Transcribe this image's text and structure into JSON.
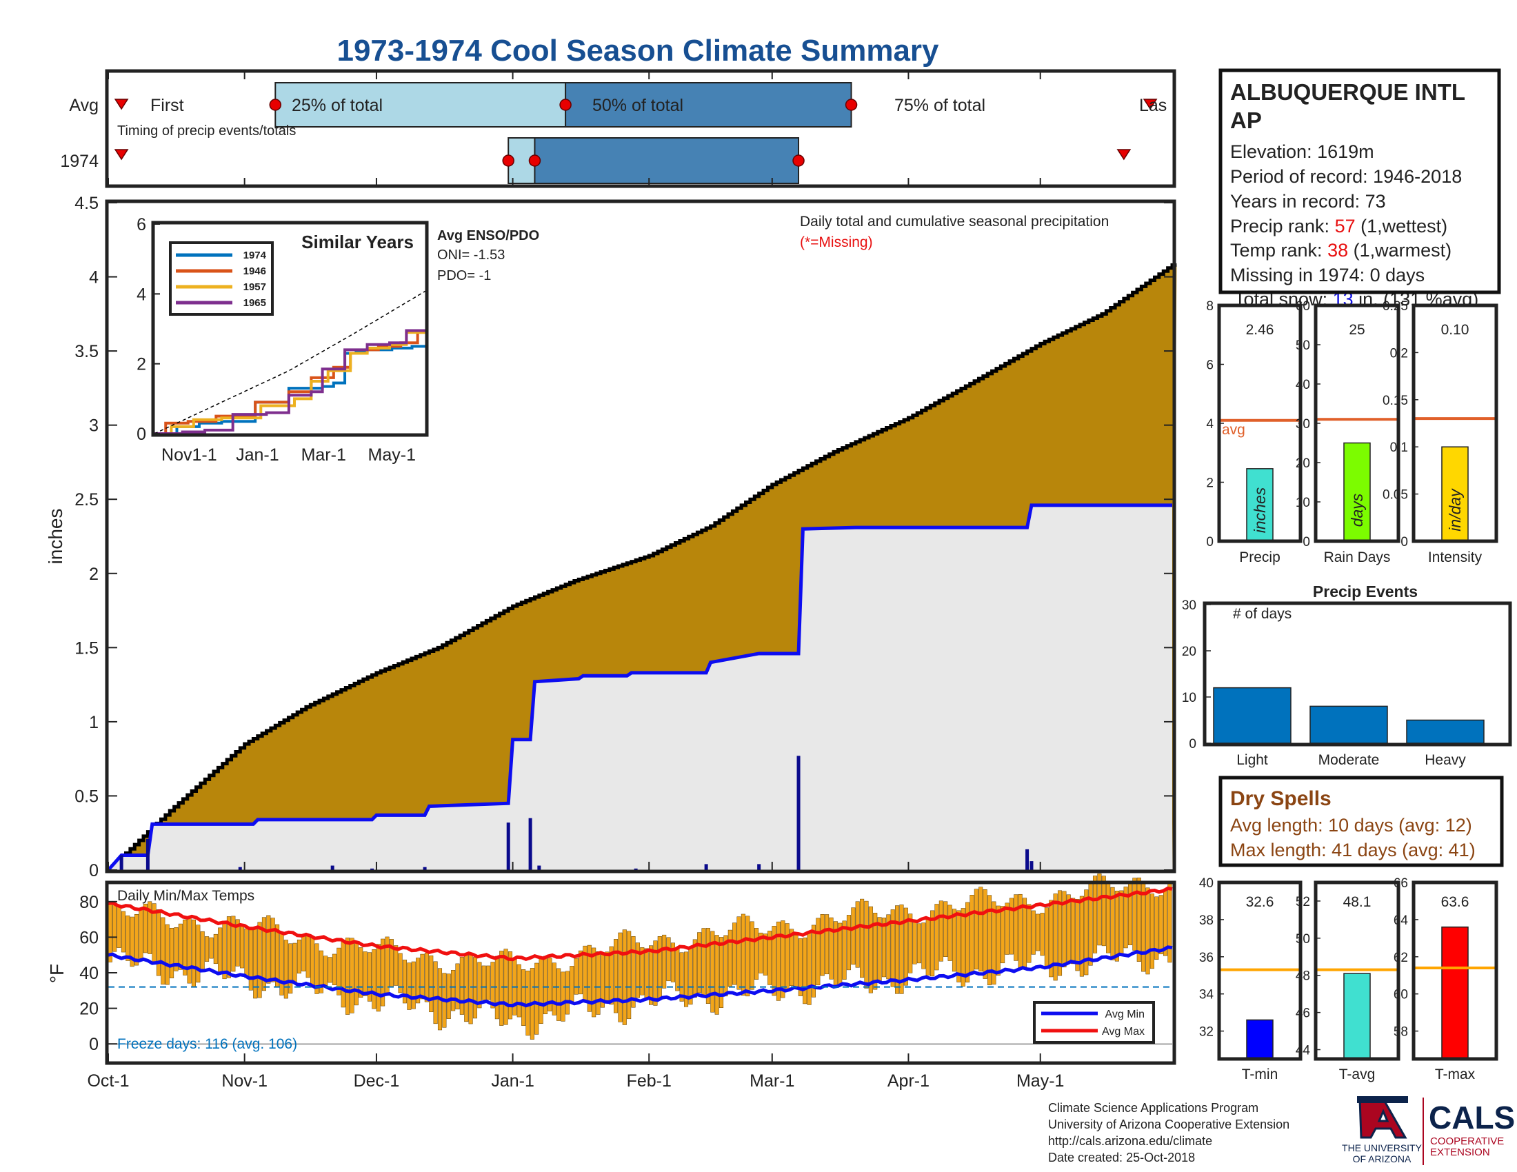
{
  "title": "1973-1974 Cool Season Climate Summary",
  "colors": {
    "title": "#174f92",
    "timing_light": "#add8e6",
    "timing_dark": "#4682b4",
    "cum_avg_fill": "#b8860b",
    "cum_obs_fill": "#e8e8e8",
    "obs_line": "#0d0df0",
    "daily_bar": "#0a0a8c",
    "avg_line": "#e0602a",
    "temp_bar": "#f2a51a",
    "avg_min": "#0d0df0",
    "avg_max": "#f01010",
    "event_bar": "#0072bd",
    "dry_text": "#8b4513",
    "red_text": "#e81010",
    "blue_text": "#1010e0",
    "freeze_text": "#0072bd"
  },
  "timing": {
    "rows": [
      "Avg",
      "1974"
    ],
    "caption": "Timing of precip events/totals",
    "labels": {
      "first": "First",
      "p25": "25% of total",
      "p50": "50% of total",
      "p75": "75% of total",
      "last": "Las"
    },
    "avg": {
      "first": "1973-10-04",
      "p25": "1973-11-08",
      "p50": "1974-01-13",
      "p75": "1974-03-19",
      "last": "1974-05-26"
    },
    "y1974": {
      "first": "1973-10-04",
      "p25": "1973-12-31",
      "p50": "1974-01-06",
      "p75": "1974-03-07",
      "last": "1974-05-20"
    }
  },
  "x_axis": {
    "start": "1973-10-01",
    "end": "1974-05-31",
    "ticks": [
      "Oct-1",
      "Nov-1",
      "Dec-1",
      "Jan-1",
      "Feb-1",
      "Mar-1",
      "Apr-1",
      "May-1"
    ]
  },
  "chart_data": [
    {
      "type": "area",
      "name": "cumulative-precip",
      "ylabel": "inches",
      "ylim": [
        0,
        4.5
      ],
      "yticks": [
        0,
        0.5,
        1,
        1.5,
        2,
        2.5,
        3,
        3.5,
        4,
        4.5
      ],
      "annotation": "Daily total and cumulative seasonal precipitation",
      "missing_note": "(*=Missing)",
      "series": [
        {
          "name": "Avg cumulative",
          "x": [
            "1973-10-01",
            "1973-10-15",
            "1973-11-01",
            "1973-11-15",
            "1973-12-01",
            "1973-12-15",
            "1974-01-01",
            "1974-01-15",
            "1974-02-01",
            "1974-02-15",
            "1974-03-01",
            "1974-03-15",
            "1974-04-01",
            "1974-04-15",
            "1974-05-01",
            "1974-05-15",
            "1974-05-31"
          ],
          "y": [
            0,
            0.4,
            0.85,
            1.1,
            1.33,
            1.5,
            1.78,
            1.95,
            2.12,
            2.32,
            2.6,
            2.82,
            3.05,
            3.28,
            3.55,
            3.75,
            4.08
          ]
        },
        {
          "name": "1974 cumulative",
          "x": [
            "1973-10-01",
            "1973-10-04",
            "1973-10-10",
            "1973-10-11",
            "1973-11-03",
            "1973-11-04",
            "1973-11-30",
            "1973-12-01",
            "1973-12-12",
            "1973-12-13",
            "1973-12-31",
            "1974-01-01",
            "1974-01-05",
            "1974-01-06",
            "1974-01-16",
            "1974-01-17",
            "1974-01-27",
            "1974-01-28",
            "1974-02-14",
            "1974-02-15",
            "1974-02-26",
            "1974-03-07",
            "1974-03-08",
            "1974-03-20",
            "1974-04-28",
            "1974-04-29",
            "1974-05-31"
          ],
          "y": [
            0,
            0.1,
            0.1,
            0.31,
            0.31,
            0.34,
            0.34,
            0.37,
            0.37,
            0.43,
            0.45,
            0.88,
            0.88,
            1.27,
            1.29,
            1.31,
            1.31,
            1.33,
            1.33,
            1.4,
            1.46,
            1.46,
            2.3,
            2.31,
            2.31,
            2.46,
            2.46
          ]
        },
        {
          "name": "Daily precip",
          "x": [
            "1973-10-04",
            "1973-10-10",
            "1973-10-31",
            "1973-11-21",
            "1973-11-30",
            "1973-12-12",
            "1973-12-31",
            "1974-01-05",
            "1974-01-07",
            "1974-01-29",
            "1974-02-14",
            "1974-02-26",
            "1974-03-07",
            "1974-04-28",
            "1974-04-29"
          ],
          "y": [
            0.1,
            0.21,
            0.02,
            0.03,
            0.01,
            0.02,
            0.32,
            0.35,
            0.03,
            0.01,
            0.04,
            0.04,
            0.77,
            0.14,
            0.06
          ]
        }
      ]
    },
    {
      "type": "line",
      "name": "similar-years",
      "title": "Similar Years",
      "xticks": [
        "Nov1-1",
        "Jan-1",
        "Mar-1",
        "May-1"
      ],
      "ylim": [
        0,
        6
      ],
      "yticks": [
        0,
        2,
        4,
        6
      ],
      "enso_title": "Avg ENSO/PDO",
      "oni": "ONI= -1.53",
      "pdo": "PDO= -1",
      "series": [
        {
          "name": "1974",
          "color": "#0072bd",
          "x": [
            0,
            20,
            40,
            60,
            90,
            120,
            135,
            150,
            160,
            170,
            180,
            190,
            200,
            212,
            230,
            243
          ],
          "y": [
            0,
            0.2,
            0.3,
            0.35,
            0.9,
            1.3,
            1.3,
            1.35,
            1.45,
            2.3,
            2.35,
            2.4,
            2.4,
            2.45,
            2.5,
            2.5
          ]
        },
        {
          "name": "1946",
          "color": "#d95319",
          "x": [
            0,
            10,
            30,
            55,
            90,
            120,
            140,
            160,
            175,
            190,
            200,
            220,
            235,
            243
          ],
          "y": [
            0,
            0.3,
            0.35,
            0.5,
            0.9,
            1.2,
            1.6,
            1.9,
            2.3,
            2.4,
            2.5,
            2.6,
            2.9,
            2.95
          ]
        },
        {
          "name": "1957",
          "color": "#edb120",
          "x": [
            0,
            15,
            35,
            60,
            95,
            125,
            140,
            155,
            175,
            190,
            210,
            225,
            243
          ],
          "y": [
            0,
            0.2,
            0.4,
            0.45,
            0.8,
            1.0,
            1.5,
            1.8,
            2.3,
            2.45,
            2.55,
            2.9,
            3.0
          ]
        },
        {
          "name": "1965",
          "color": "#7e2f8e",
          "x": [
            0,
            25,
            45,
            70,
            100,
            120,
            140,
            150,
            170,
            190,
            210,
            225,
            243
          ],
          "y": [
            0,
            0.05,
            0.1,
            0.55,
            0.6,
            1.1,
            1.2,
            1.85,
            2.4,
            2.55,
            2.6,
            2.95,
            3.0
          ]
        },
        {
          "name": "Avg",
          "color": "#000000",
          "x": [
            0,
            60,
            120,
            180,
            243
          ],
          "y": [
            0,
            0.9,
            1.8,
            2.9,
            4.1
          ]
        }
      ]
    },
    {
      "type": "bar",
      "name": "daily-temps",
      "title": "Daily Min/Max Temps",
      "ylabel": "°F",
      "ylim": [
        -10,
        90
      ],
      "yticks": [
        0,
        20,
        40,
        60,
        80
      ],
      "freeze_line": 32,
      "freeze_text": "Freeze days: 116 (avg. 106)",
      "legend": [
        "Avg Min",
        "Avg Max"
      ],
      "avg_min": {
        "x": [
          "1973-10-01",
          "1973-11-01",
          "1973-12-01",
          "1974-01-01",
          "1974-02-01",
          "1974-03-01",
          "1974-04-01",
          "1974-05-01",
          "1974-05-31"
        ],
        "y": [
          50,
          38,
          28,
          22,
          25,
          30,
          36,
          43,
          54
        ]
      },
      "avg_max": {
        "x": [
          "1973-10-01",
          "1973-11-01",
          "1973-12-01",
          "1974-01-01",
          "1974-02-01",
          "1974-03-01",
          "1974-04-01",
          "1974-05-01",
          "1974-05-31"
        ],
        "y": [
          79,
          66,
          55,
          48,
          52,
          60,
          69,
          78,
          87
        ]
      },
      "daily_min_anchor": {
        "x": [
          "1973-10-01",
          "1973-11-01",
          "1973-12-01",
          "1974-01-01",
          "1974-02-01",
          "1974-03-01",
          "1974-04-01",
          "1974-05-01",
          "1974-05-31"
        ],
        "y": [
          46,
          36,
          24,
          12,
          24,
          30,
          38,
          44,
          50
        ]
      },
      "daily_max_anchor": {
        "x": [
          "1973-10-01",
          "1973-11-01",
          "1973-12-01",
          "1974-01-01",
          "1974-02-01",
          "1974-03-01",
          "1974-04-01",
          "1974-05-01",
          "1974-05-31"
        ],
        "y": [
          74,
          66,
          52,
          44,
          58,
          66,
          76,
          82,
          93
        ]
      }
    },
    {
      "type": "bar",
      "name": "season-precip",
      "categories": [
        "Precip",
        "Rain Days",
        "Intensity"
      ],
      "values": [
        2.46,
        25,
        0.1
      ],
      "labels": [
        "2.46",
        "25",
        "0.10"
      ],
      "averages": [
        4.1,
        31,
        0.13
      ],
      "avg_label": "avg",
      "units": [
        "inches",
        "days",
        "in/day"
      ],
      "bar_colors": [
        "#40e0d0",
        "#7cfc00",
        "#ffd700"
      ],
      "ylims": [
        [
          0,
          8
        ],
        [
          0,
          60
        ],
        [
          0,
          0.25
        ]
      ],
      "yticks": [
        [
          "0",
          "2",
          "4",
          "6",
          "8"
        ],
        [
          "0",
          "10",
          "20",
          "30",
          "40",
          "50",
          "60"
        ],
        [
          "0",
          "0.05",
          "0.1",
          "0.15",
          "0.2",
          "0.25"
        ]
      ]
    },
    {
      "type": "bar",
      "name": "precip-events",
      "title": "Precip Events",
      "ylabel": "# of days",
      "categories": [
        "Light",
        "Moderate",
        "Heavy"
      ],
      "values": [
        12,
        8,
        5
      ],
      "ylim": [
        0,
        30
      ],
      "yticks": [
        0,
        10,
        20,
        30
      ]
    },
    {
      "type": "bar",
      "name": "season-temps",
      "categories": [
        "T-min",
        "T-avg",
        "T-max"
      ],
      "values": [
        32.6,
        48.1,
        63.6
      ],
      "labels": [
        "32.6",
        "48.1",
        "63.6"
      ],
      "averages": [
        35.3,
        48.3,
        61.4
      ],
      "bar_colors": [
        "#0000ff",
        "#40e0d0",
        "#ff0000"
      ],
      "ylims": [
        [
          30.5,
          40
        ],
        [
          43.5,
          53
        ],
        [
          56.5,
          66
        ]
      ],
      "yticks": [
        [
          "32",
          "34",
          "36",
          "38",
          "40"
        ],
        [
          "44",
          "46",
          "48",
          "50",
          "52"
        ],
        [
          "58",
          "60",
          "62",
          "64",
          "66"
        ]
      ]
    }
  ],
  "station": {
    "name_line1": "ALBUQUERQUE INTL",
    "name_line2": "AP",
    "elevation": "Elevation: 1619m",
    "period": "Period of record: 1946-2018",
    "years": "Years in record: 73",
    "precip_rank_label": "Precip rank: ",
    "precip_rank_value": "57",
    "precip_rank_note": " (1,wettest)",
    "temp_rank_label": "Temp rank: ",
    "temp_rank_value": "38",
    "temp_rank_note": " (1,warmest)",
    "missing": "Missing in 1974: 0 days",
    "snow_label": "Total snow: ",
    "snow_value": "13",
    "snow_note": " in. (131 %avg)"
  },
  "dry_spells": {
    "title": "Dry Spells",
    "avg": "Avg length: 10 days (avg: 12)",
    "max": "Max length: 41 days (avg: 41)"
  },
  "footer": {
    "line1": "Climate Science Applications Program",
    "line2": "University of Arizona Cooperative Extension",
    "line3": "http://cals.arizona.edu/climate",
    "line4": " Date created: 25-Oct-2018",
    "ua_logo_text1": "THE UNIVERSITY",
    "ua_logo_text2": "OF ARIZONA",
    "cals_logo": "CALS",
    "cals_sub1": "COOPERATIVE",
    "cals_sub2": "EXTENSION"
  }
}
